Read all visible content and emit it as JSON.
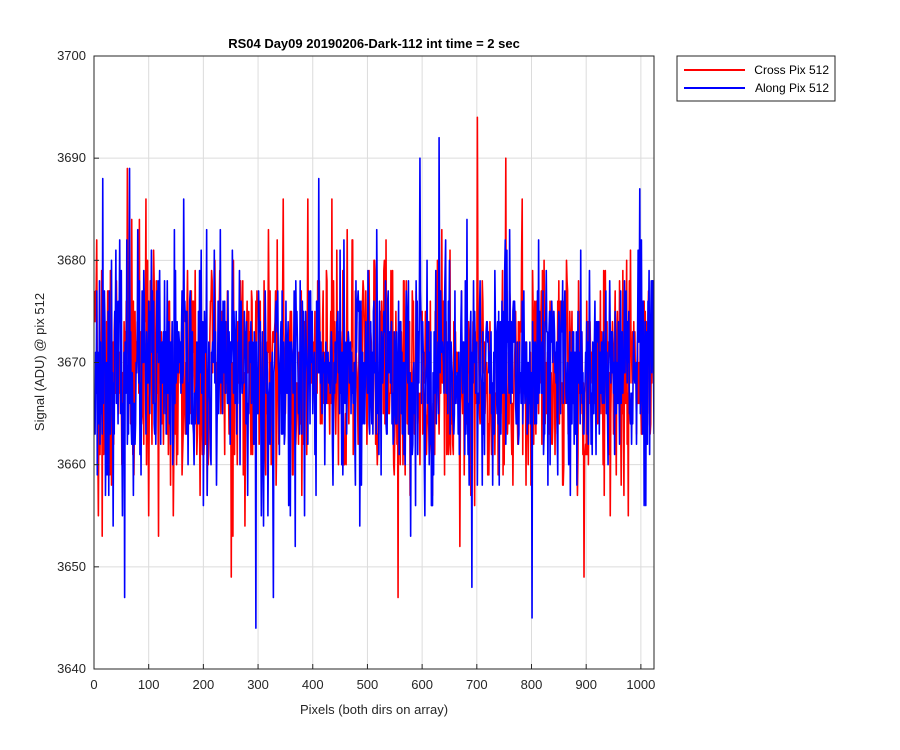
{
  "chart_data": {
    "type": "line",
    "title": "RS04 Day09 20190206-Dark-112 int time = 2 sec",
    "xlabel": "Pixels (both dirs on array)",
    "ylabel": "Signal (ADU) @ pix 512",
    "xlim": [
      0,
      1024
    ],
    "ylim": [
      3640,
      3700
    ],
    "xticks": [
      0,
      100,
      200,
      300,
      400,
      500,
      600,
      700,
      800,
      900,
      1000
    ],
    "yticks": [
      3640,
      3650,
      3660,
      3670,
      3680,
      3690,
      3700
    ],
    "grid": true,
    "legend_position": "outside-top-right",
    "series": [
      {
        "name": "Cross Pix 512",
        "color": "#ff0000",
        "noise": {
          "n": 1024,
          "mean": 3669,
          "std": 5.6,
          "seed": 7
        },
        "notable_points": [
          [
            7,
            3655
          ],
          [
            14,
            3653
          ],
          [
            60,
            3689
          ],
          [
            82,
            3684
          ],
          [
            250,
            3649
          ],
          [
            345,
            3686
          ],
          [
            555,
            3647
          ],
          [
            700,
            3694
          ],
          [
            752,
            3690
          ],
          [
            895,
            3649
          ]
        ]
      },
      {
        "name": "Along Pix 512",
        "color": "#0000ff",
        "noise": {
          "n": 1024,
          "mean": 3669,
          "std": 5.6,
          "seed": 23
        },
        "notable_points": [
          [
            15,
            3688
          ],
          [
            55,
            3647
          ],
          [
            64,
            3689
          ],
          [
            295,
            3644
          ],
          [
            327,
            3647
          ],
          [
            410,
            3688
          ],
          [
            595,
            3690
          ],
          [
            630,
            3692
          ],
          [
            690,
            3648
          ],
          [
            800,
            3645
          ],
          [
            905,
            3679
          ]
        ]
      }
    ]
  }
}
